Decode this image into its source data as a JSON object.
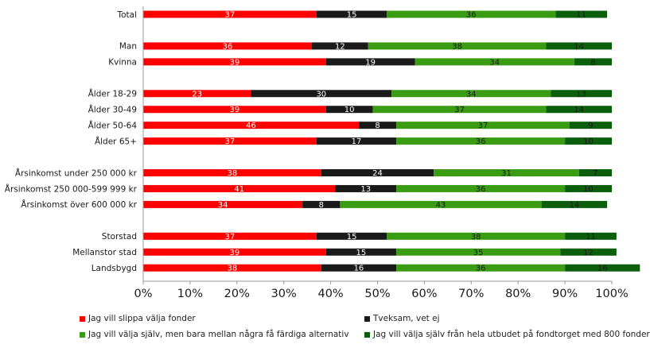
{
  "chart_data": {
    "type": "bar",
    "orientation": "horizontal",
    "stacked": "percent",
    "categories": [
      "Total",
      "",
      "Man",
      "Kvinna",
      "",
      "Ålder 18-29",
      "Ålder 30-49",
      "Ålder 50-64",
      "Ålder 65+",
      "",
      "Årsinkomst under 250 000 kr",
      "Årsinkomst 250 000-599 999 kr",
      "Årsinkomst över 600 000 kr",
      "",
      "Storstad",
      "Mellanstor stad",
      "Landsbygd"
    ],
    "series": [
      {
        "name": "Jag vill slippa välja fonder",
        "color": "#ff0000",
        "label_color": "#ffffff",
        "values": [
          37,
          null,
          36,
          39,
          null,
          23,
          39,
          46,
          37,
          null,
          38,
          41,
          34,
          null,
          37,
          39,
          38
        ]
      },
      {
        "name": "Tveksam, vet ej",
        "color": "#1a1a1a",
        "label_color": "#ffffff",
        "values": [
          15,
          null,
          12,
          19,
          null,
          30,
          10,
          8,
          17,
          null,
          24,
          13,
          8,
          null,
          15,
          15,
          16
        ]
      },
      {
        "name": "Jag vill välja själv, men bara mellan några få färdiga alternativ",
        "color": "#3a9c13",
        "label_color": "#1a1a1a",
        "values": [
          36,
          null,
          38,
          34,
          null,
          34,
          37,
          37,
          36,
          null,
          31,
          36,
          43,
          null,
          38,
          35,
          36
        ]
      },
      {
        "name": "Jag vill välja själv från hela utbudet på fondtorget med 800 fonder",
        "color": "#0b5e0b",
        "label_color": "#1a1a1a",
        "values": [
          11,
          null,
          14,
          8,
          null,
          13,
          14,
          9,
          10,
          null,
          7,
          10,
          14,
          null,
          11,
          12,
          16
        ]
      }
    ],
    "xlim": [
      0,
      100
    ],
    "x_ticks": [
      "0%",
      "10%",
      "20%",
      "30%",
      "40%",
      "50%",
      "60%",
      "70%",
      "80%",
      "90%",
      "100%"
    ],
    "grid": false,
    "legend_position": "bottom"
  }
}
